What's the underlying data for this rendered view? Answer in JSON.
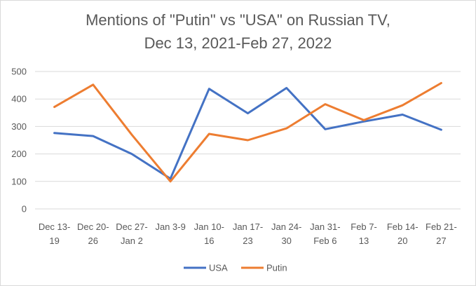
{
  "chart_data": {
    "type": "line",
    "title_line1": "Mentions of \"Putin\" vs \"USA\" on Russian TV,",
    "title_line2": "Dec 13, 2021-Feb 27, 2022",
    "xlabel": "",
    "ylabel": "",
    "ylim": [
      0,
      500
    ],
    "yticks": [
      0,
      100,
      200,
      300,
      400,
      500
    ],
    "grid": true,
    "legend_position": "bottom",
    "categories": [
      [
        "Dec 13-",
        "19"
      ],
      [
        "Dec 20-",
        "26"
      ],
      [
        "Dec 27-",
        "Jan 2"
      ],
      [
        "Jan 3-9",
        ""
      ],
      [
        "Jan 10-",
        "16"
      ],
      [
        "Jan 17-",
        "23"
      ],
      [
        "Jan 24-",
        "30"
      ],
      [
        "Jan 31-",
        "Feb 6"
      ],
      [
        "Feb 7-",
        "13"
      ],
      [
        "Feb 14-",
        "20"
      ],
      [
        "Feb 21-",
        "27"
      ]
    ],
    "series": [
      {
        "name": "USA",
        "color": "#4472c4",
        "values": [
          276,
          265,
          200,
          110,
          437,
          348,
          440,
          290,
          318,
          343,
          288
        ]
      },
      {
        "name": "Putin",
        "color": "#ed7d31",
        "values": [
          371,
          452,
          270,
          100,
          273,
          250,
          293,
          381,
          323,
          377,
          458
        ]
      }
    ]
  }
}
